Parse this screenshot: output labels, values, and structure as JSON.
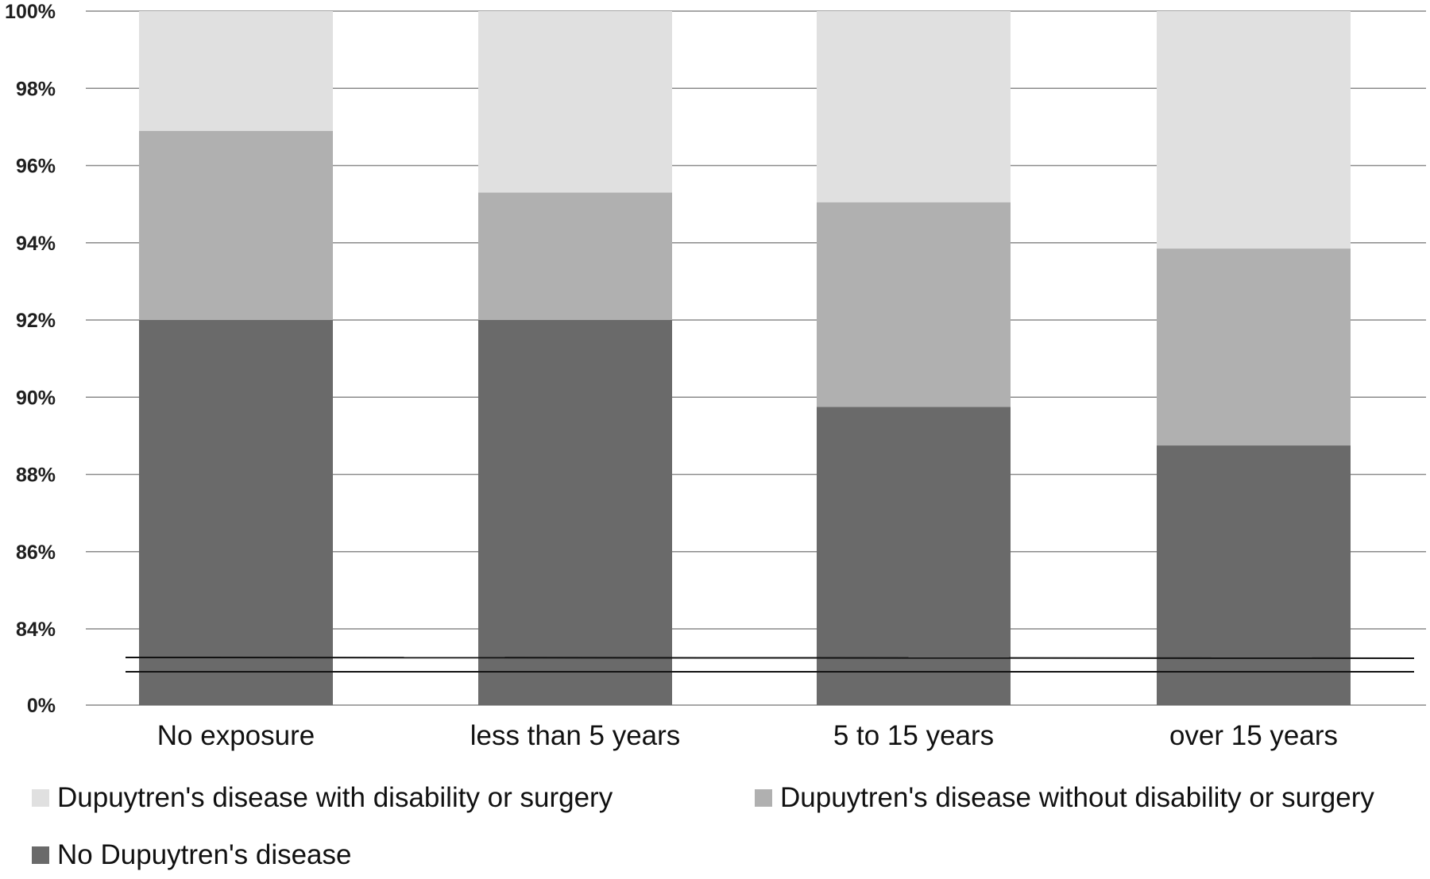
{
  "chart_data": {
    "type": "bar",
    "stacked": true,
    "categories": [
      "No exposure",
      "less than 5 years",
      "5 to 15 years",
      "over 15 years"
    ],
    "series": [
      {
        "name": "No Dupuytren's disease",
        "color": "#6a6a6a",
        "values": [
          92.0,
          92.0,
          89.75,
          88.75
        ]
      },
      {
        "name": "Dupuytren's disease without disability or surgery",
        "color": "#b0b0b0",
        "values": [
          4.9,
          3.3,
          5.3,
          5.1
        ]
      },
      {
        "name": "Dupuytren's disease with disability or surgery",
        "color": "#e0e0e0",
        "values": [
          3.1,
          4.7,
          4.95,
          6.15
        ]
      }
    ],
    "yaxis": {
      "ticks": [
        "0%",
        "84%",
        "86%",
        "88%",
        "90%",
        "92%",
        "94%",
        "96%",
        "98%",
        "100%"
      ],
      "tick_values": [
        0,
        84,
        86,
        88,
        90,
        92,
        94,
        96,
        98,
        100
      ],
      "broken": true,
      "break_between": [
        0,
        84
      ]
    },
    "grid": true,
    "legend_position": "bottom",
    "legend_order": [
      "Dupuytren's disease with disability or surgery",
      "Dupuytren's disease without disability or surgery",
      "No Dupuytren's disease"
    ]
  }
}
